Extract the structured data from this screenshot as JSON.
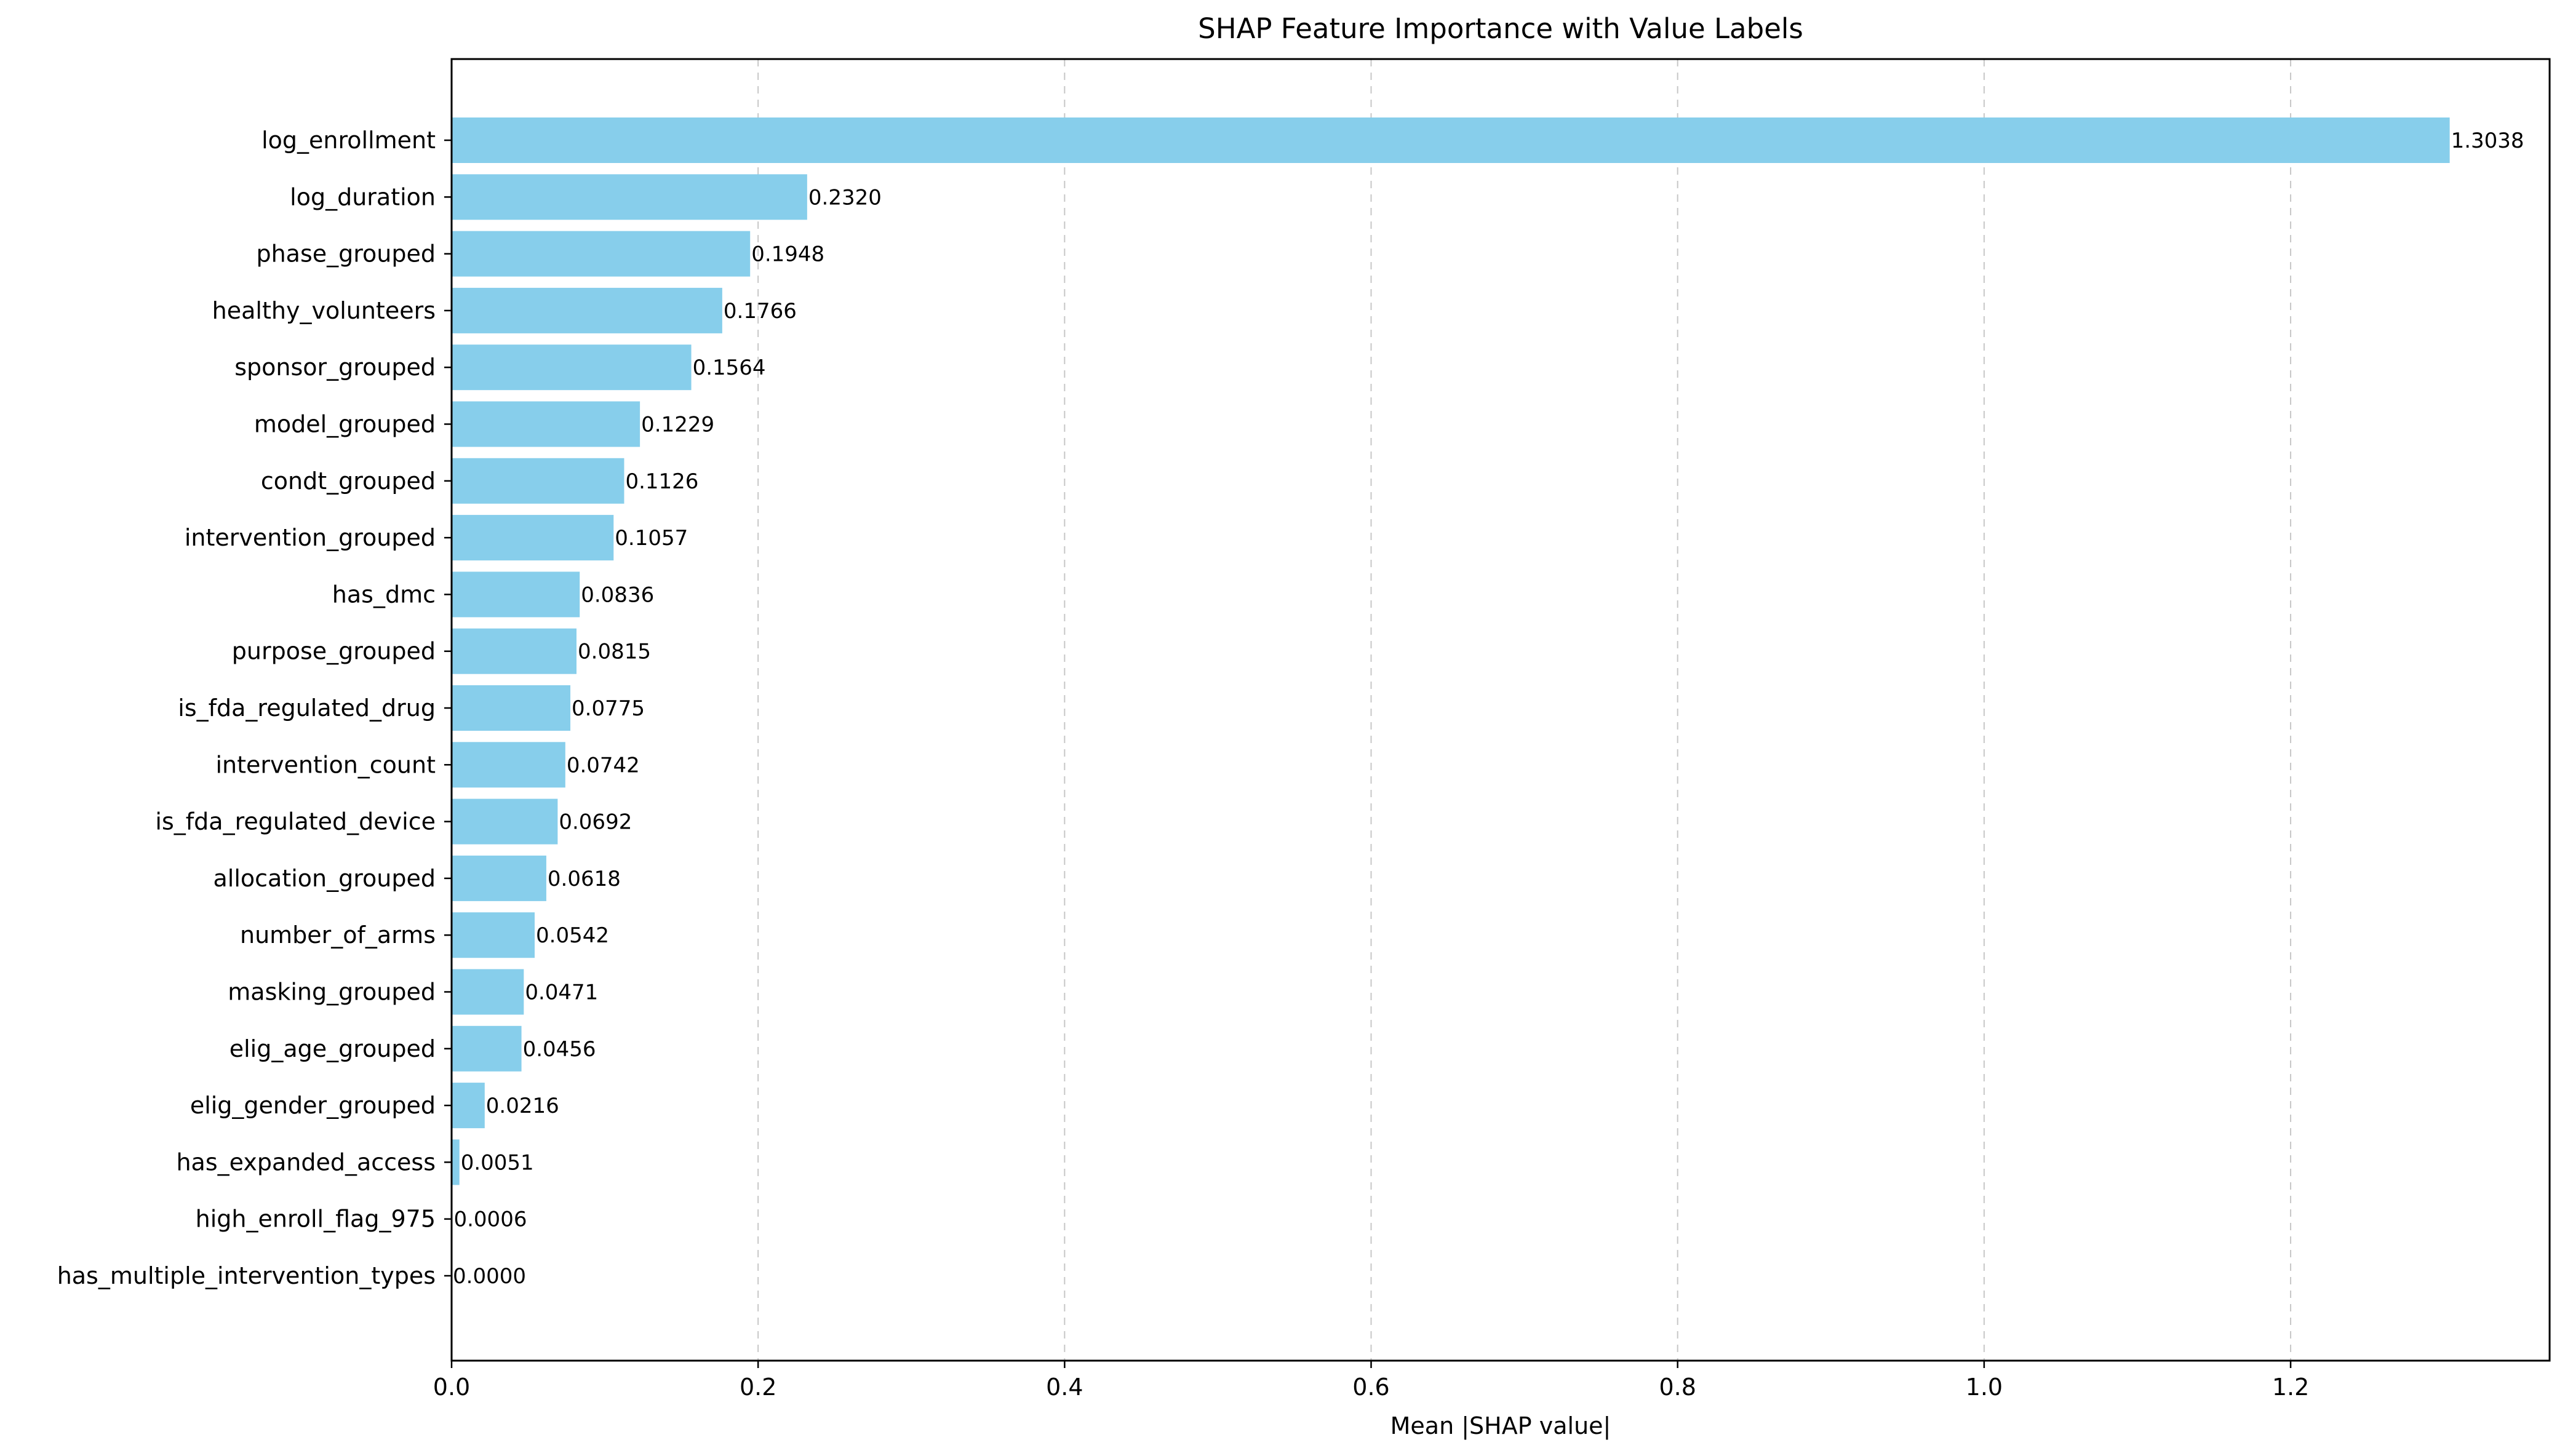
{
  "chart_data": {
    "type": "bar",
    "orientation": "horizontal",
    "title": "SHAP Feature Importance with Value Labels",
    "xlabel": "Mean |SHAP value|",
    "ylabel": "",
    "xlim": [
      0,
      1.369
    ],
    "xticks": [
      0.0,
      0.2,
      0.4,
      0.6,
      0.8,
      1.0,
      1.2
    ],
    "xtick_labels": [
      "0.0",
      "0.2",
      "0.4",
      "0.6",
      "0.8",
      "1.0",
      "1.2"
    ],
    "grid": "x-axis dashed",
    "bar_color": "#87CEEB",
    "categories": [
      "log_enrollment",
      "log_duration",
      "phase_grouped",
      "healthy_volunteers",
      "sponsor_grouped",
      "model_grouped",
      "condt_grouped",
      "intervention_grouped",
      "has_dmc",
      "purpose_grouped",
      "is_fda_regulated_drug",
      "intervention_count",
      "is_fda_regulated_device",
      "allocation_grouped",
      "number_of_arms",
      "masking_grouped",
      "elig_age_grouped",
      "elig_gender_grouped",
      "has_expanded_access",
      "high_enroll_flag_975",
      "has_multiple_intervention_types"
    ],
    "values": [
      1.3038,
      0.232,
      0.1948,
      0.1766,
      0.1564,
      0.1229,
      0.1126,
      0.1057,
      0.0836,
      0.0815,
      0.0775,
      0.0742,
      0.0692,
      0.0618,
      0.0542,
      0.0471,
      0.0456,
      0.0216,
      0.0051,
      0.0006,
      0.0
    ],
    "value_labels": [
      "1.3038",
      "0.2320",
      "0.1948",
      "0.1766",
      "0.1564",
      "0.1229",
      "0.1126",
      "0.1057",
      "0.0836",
      "0.0815",
      "0.0775",
      "0.0742",
      "0.0692",
      "0.0618",
      "0.0542",
      "0.0471",
      "0.0456",
      "0.0216",
      "0.0051",
      "0.0006",
      "0.0000"
    ]
  }
}
